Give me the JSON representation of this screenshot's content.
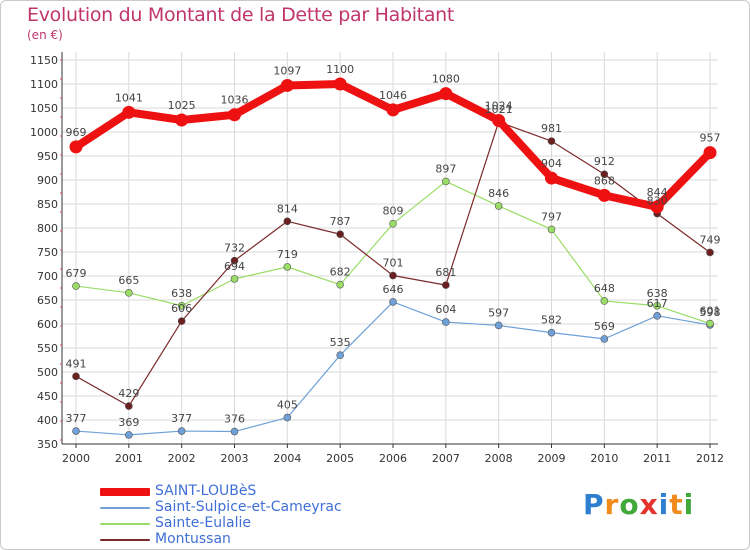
{
  "chart_data": {
    "type": "line",
    "title": "Evolution du Montant de la Dette par Habitant",
    "subtitle": "(en €)",
    "x": [
      "2000",
      "2001",
      "2002",
      "2003",
      "2004",
      "2005",
      "2006",
      "2007",
      "2008",
      "2009",
      "2010",
      "2011",
      "2012"
    ],
    "ylim": [
      350,
      1150
    ],
    "yticks": [
      350,
      400,
      450,
      500,
      550,
      600,
      650,
      700,
      750,
      800,
      850,
      900,
      950,
      1000,
      1050,
      1100,
      1150
    ],
    "grid": true,
    "legend_position": "bottom-left",
    "series": [
      {
        "name": "SAINT-LOUBèS",
        "color": "#ee1111",
        "width": 8,
        "values": [
          969,
          1041,
          1025,
          1036,
          1097,
          1100,
          1046,
          1080,
          1024,
          904,
          868,
          844,
          957
        ]
      },
      {
        "name": "Saint-Sulpice-et-Cameyrac",
        "color": "#6fa0d8",
        "width": 1.2,
        "values": [
          377,
          369,
          377,
          376,
          405,
          535,
          646,
          604,
          597,
          582,
          569,
          617,
          598
        ]
      },
      {
        "name": "Sainte-Eulalie",
        "color": "#99dd66",
        "width": 1.2,
        "values": [
          679,
          665,
          638,
          694,
          719,
          682,
          809,
          897,
          846,
          797,
          648,
          638,
          601
        ]
      },
      {
        "name": "Montussan",
        "color": "#7a2a2a",
        "width": 1.2,
        "values": [
          491,
          429,
          606,
          732,
          814,
          787,
          701,
          681,
          1021,
          981,
          912,
          830,
          749
        ]
      }
    ]
  },
  "logo": {
    "letters": [
      "P",
      "r",
      "o",
      "x",
      "i",
      "t",
      "i"
    ],
    "colors": [
      "#2f7fd1",
      "#f08a1c",
      "#41a83a",
      "#e4342c",
      "#2f7fd1",
      "#f08a1c",
      "#41a83a"
    ]
  }
}
